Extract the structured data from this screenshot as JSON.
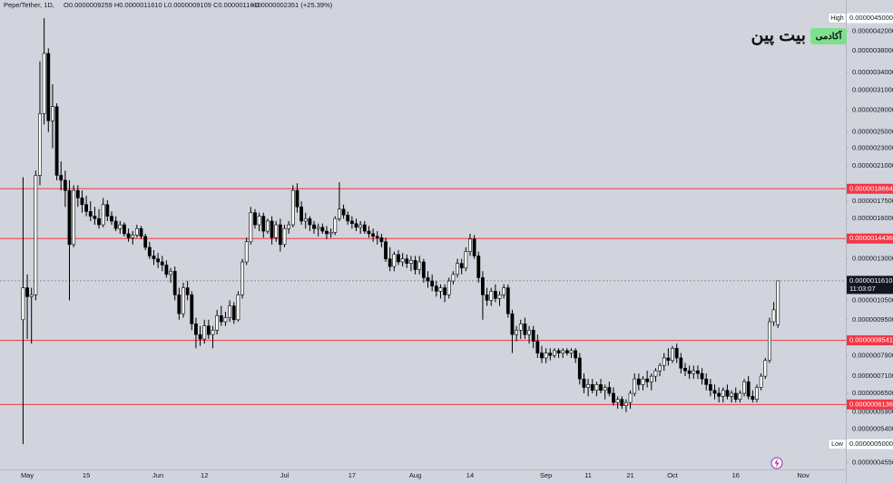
{
  "chart_data": {
    "type": "candlestick",
    "header": {
      "symbol": "Pepe/Tether, 1D,",
      "ohlc": "O0.0000009259 H0.0000011610 L0.0000009109 C0.0000011610",
      "change": "+0.0000002351 (+25.39%)"
    },
    "watermark": {
      "brand": "بیت پین",
      "badge": "آکادمی"
    },
    "log_scale": true,
    "grid": false,
    "up_color": "#ffffff",
    "down_color": "#000000",
    "level_color": "#f23645",
    "ylim": [
      4.39e-07,
      4.94e-06
    ],
    "yticks": [
      {
        "value": 4.2e-06,
        "label": "0.0000042000"
      },
      {
        "value": 3.8e-06,
        "label": "0.0000038000"
      },
      {
        "value": 3.4e-06,
        "label": "0.0000034000"
      },
      {
        "value": 3.1e-06,
        "label": "0.0000031000"
      },
      {
        "value": 2.8e-06,
        "label": "0.0000028000"
      },
      {
        "value": 2.5e-06,
        "label": "0.0000025000"
      },
      {
        "value": 2.3e-06,
        "label": "0.0000023000"
      },
      {
        "value": 2.1e-06,
        "label": "0.0000021000"
      },
      {
        "value": 1.75e-06,
        "label": "0.0000017500"
      },
      {
        "value": 1.6e-06,
        "label": "0.0000016000"
      },
      {
        "value": 1.3e-06,
        "label": "0.0000013000"
      },
      {
        "value": 1.05e-06,
        "label": "0.0000010500"
      },
      {
        "value": 9.5e-07,
        "label": "0.0000009500"
      },
      {
        "value": 7.9e-07,
        "label": "0.0000007900"
      },
      {
        "value": 7.1e-07,
        "label": "0.0000007100"
      },
      {
        "value": 6.5e-07,
        "label": "0.0000006500"
      },
      {
        "value": 5.9e-07,
        "label": "0.0000005900"
      },
      {
        "value": 5.4e-07,
        "label": "0.0000005400"
      },
      {
        "value": 4.55e-07,
        "label": "0.0000004550"
      }
    ],
    "extremes": [
      {
        "name": "High",
        "value": 4.5e-06,
        "label": "0.0000045000"
      },
      {
        "name": "Low",
        "value": 5e-07,
        "label": "0.0000005000"
      }
    ],
    "levels": [
      {
        "value": 1.8664e-06,
        "label": "0.0000018664"
      },
      {
        "value": 1.4436e-06,
        "label": "0.0000014436"
      },
      {
        "value": 8.541e-07,
        "label": "0.0000008541"
      },
      {
        "value": 6.136e-07,
        "label": "0.0000006136"
      }
    ],
    "last_price": {
      "value": 1.161e-06,
      "label": "0.0000011610",
      "countdown": "11:03:07"
    },
    "categories": [
      null,
      "May",
      null,
      null,
      null,
      null,
      null,
      null,
      null,
      null,
      null,
      null,
      null,
      null,
      null,
      "15",
      null,
      null,
      null,
      null,
      null,
      null,
      null,
      null,
      null,
      null,
      null,
      null,
      null,
      null,
      null,
      null,
      "Jun",
      null,
      null,
      null,
      null,
      null,
      null,
      null,
      null,
      null,
      null,
      "12",
      null,
      null,
      null,
      null,
      null,
      null,
      null,
      null,
      null,
      null,
      null,
      null,
      null,
      null,
      null,
      null,
      null,
      null,
      "Jul",
      null,
      null,
      null,
      null,
      null,
      null,
      null,
      null,
      null,
      null,
      null,
      null,
      null,
      null,
      null,
      "17",
      null,
      null,
      null,
      null,
      null,
      null,
      null,
      null,
      null,
      null,
      null,
      null,
      null,
      null,
      "Aug",
      null,
      null,
      null,
      null,
      null,
      null,
      null,
      null,
      null,
      null,
      null,
      null,
      "14",
      null,
      null,
      null,
      null,
      null,
      null,
      null,
      null,
      null,
      null,
      null,
      null,
      null,
      null,
      null,
      null,
      null,
      "Sep",
      null,
      null,
      null,
      null,
      null,
      null,
      null,
      null,
      null,
      "11",
      null,
      null,
      null,
      null,
      null,
      null,
      null,
      null,
      null,
      "21",
      null,
      null,
      null,
      null,
      null,
      null,
      null,
      null,
      null,
      "Oct",
      null,
      null,
      null,
      null,
      null,
      null,
      null,
      null,
      null,
      null,
      null,
      null,
      null,
      null,
      "16",
      null,
      null,
      null,
      null,
      null,
      null,
      null,
      null,
      null,
      null,
      null,
      null,
      null,
      null,
      null,
      "Nov"
    ],
    "open": [
      9.5e-07,
      1.12e-06,
      1.07e-06,
      1.08e-06,
      2e-06,
      2.75e-06,
      3.75e-06,
      2.65e-06,
      2.85e-06,
      2e-06,
      1.95e-06,
      1.85e-06,
      1.4e-06,
      1.85e-06,
      1.78e-06,
      1.72e-06,
      1.66e-06,
      1.62e-06,
      1.6e-06,
      1.55e-06,
      1.72e-06,
      1.62e-06,
      1.58e-06,
      1.52e-06,
      1.55e-06,
      1.48e-06,
      1.45e-06,
      1.47e-06,
      1.52e-06,
      1.46e-06,
      1.38e-06,
      1.32e-06,
      1.3e-06,
      1.28e-06,
      1.26e-06,
      1.2e-06,
      1.22e-06,
      1.08e-06,
      9.8e-07,
      1.12e-06,
      1.08e-06,
      9.3e-07,
      8.8e-07,
      8.6e-07,
      9.2e-07,
      8.8e-07,
      9e-07,
      9.7e-07,
      9.4e-07,
      9.6e-07,
      1.02e-06,
      9.5e-07,
      1.08e-06,
      1.28e-06,
      1.42e-06,
      1.65e-06,
      1.55e-06,
      1.62e-06,
      1.5e-06,
      1.58e-06,
      1.45e-06,
      1.55e-06,
      1.4e-06,
      1.52e-06,
      1.55e-06,
      1.85e-06,
      1.7e-06,
      1.58e-06,
      1.6e-06,
      1.55e-06,
      1.52e-06,
      1.53e-06,
      1.5e-06,
      1.48e-06,
      1.49e-06,
      1.6e-06,
      1.68e-06,
      1.63e-06,
      1.58e-06,
      1.56e-06,
      1.53e-06,
      1.55e-06,
      1.5e-06,
      1.48e-06,
      1.46e-06,
      1.45e-06,
      1.42e-06,
      1.3e-06,
      1.25e-06,
      1.33e-06,
      1.28e-06,
      1.3e-06,
      1.27e-06,
      1.29e-06,
      1.23e-06,
      1.28e-06,
      1.18e-06,
      1.16e-06,
      1.13e-06,
      1.1e-06,
      1.12e-06,
      1.08e-06,
      1.16e-06,
      1.2e-06,
      1.27e-06,
      1.24e-06,
      1.35e-06,
      1.44e-06,
      1.32e-06,
      1.18e-06,
      1.08e-06,
      1.05e-06,
      1.1e-06,
      1.06e-06,
      1.08e-06,
      1.12e-06,
      9.8e-07,
      8.8e-07,
      9e-07,
      9.3e-07,
      8.8e-07,
      9e-07,
      8.5e-07,
      8e-07,
      7.8e-07,
      8e-07,
      7.9e-07,
      8.1e-07,
      8e-07,
      8.1e-07,
      8e-07,
      8.1e-07,
      7.8e-07,
      7e-07,
      6.7e-07,
      6.8e-07,
      6.6e-07,
      6.8e-07,
      6.6e-07,
      6.7e-07,
      6.5e-07,
      6.2e-07,
      6.3e-07,
      6.1e-07,
      6.2e-07,
      6.5e-07,
      7e-07,
      6.8e-07,
      7e-07,
      6.9e-07,
      7.1e-07,
      7.3e-07,
      7.5e-07,
      7.8e-07,
      7.7e-07,
      8.2e-07,
      7.8e-07,
      7.4e-07,
      7.3e-07,
      7.2e-07,
      7.3e-07,
      7.2e-07,
      7e-07,
      6.8e-07,
      6.6e-07,
      6.5e-07,
      6.4e-07,
      6.6e-07,
      6.4e-07,
      6.5e-07,
      6.3e-07,
      6.5e-07,
      6.9e-07,
      6.4e-07,
      6.3e-07,
      6.7e-07,
      7.1e-07,
      7.7e-07,
      9.4e-07,
      9.259e-07,
      null,
      null,
      null,
      null,
      null,
      null
    ],
    "high": [
      1.98e-06,
      1.2e-06,
      1.12e-06,
      2.05e-06,
      3.6e-06,
      4.5e-06,
      3.85e-06,
      3.2e-06,
      2.9e-06,
      2.15e-06,
      2.05e-06,
      1.95e-06,
      1.9e-06,
      1.9e-06,
      1.85e-06,
      1.8e-06,
      1.75e-06,
      1.7e-06,
      1.68e-06,
      1.78e-06,
      1.76e-06,
      1.66e-06,
      1.62e-06,
      1.58e-06,
      1.57e-06,
      1.52e-06,
      1.5e-06,
      1.55e-06,
      1.54e-06,
      1.48e-06,
      1.42e-06,
      1.36e-06,
      1.34e-06,
      1.32e-06,
      1.29e-06,
      1.24e-06,
      1.25e-06,
      1.12e-06,
      1.15e-06,
      1.16e-06,
      1.1e-06,
      9.6e-07,
      9.2e-07,
      9.5e-07,
      9.5e-07,
      9.2e-07,
      1e-06,
      1.02e-06,
      9.9e-07,
      1.05e-06,
      1.04e-06,
      1.1e-06,
      1.3e-06,
      1.45e-06,
      1.7e-06,
      1.68e-06,
      1.65e-06,
      1.65e-06,
      1.6e-06,
      1.62e-06,
      1.58e-06,
      1.6e-06,
      1.55e-06,
      1.58e-06,
      1.9e-06,
      1.92e-06,
      1.75e-06,
      1.65e-06,
      1.62e-06,
      1.58e-06,
      1.56e-06,
      1.56e-06,
      1.54e-06,
      1.52e-06,
      1.62e-06,
      1.93e-06,
      1.72e-06,
      1.66e-06,
      1.62e-06,
      1.6e-06,
      1.58e-06,
      1.58e-06,
      1.54e-06,
      1.52e-06,
      1.5e-06,
      1.48e-06,
      1.45e-06,
      1.38e-06,
      1.35e-06,
      1.36e-06,
      1.34e-06,
      1.33e-06,
      1.32e-06,
      1.32e-06,
      1.32e-06,
      1.3e-06,
      1.22e-06,
      1.2e-06,
      1.16e-06,
      1.14e-06,
      1.14e-06,
      1.18e-06,
      1.22e-06,
      1.3e-06,
      1.3e-06,
      1.38e-06,
      1.48e-06,
      1.47e-06,
      1.35e-06,
      1.22e-06,
      1.12e-06,
      1.12e-06,
      1.14e-06,
      1.1e-06,
      1.14e-06,
      1.14e-06,
      1e-06,
      9.2e-07,
      9.5e-07,
      9.6e-07,
      9.2e-07,
      9.2e-07,
      8.8e-07,
      8.3e-07,
      8.2e-07,
      8.2e-07,
      8.2e-07,
      8.2e-07,
      8.2e-07,
      8.2e-07,
      8.2e-07,
      8.2e-07,
      8e-07,
      7.2e-07,
      7e-07,
      7e-07,
      6.9e-07,
      7e-07,
      6.8e-07,
      6.9e-07,
      6.7e-07,
      6.4e-07,
      6.4e-07,
      6.3e-07,
      6.6e-07,
      7.2e-07,
      7.2e-07,
      7.1e-07,
      7.3e-07,
      7.2e-07,
      7.4e-07,
      7.6e-07,
      8e-07,
      8.2e-07,
      8.3e-07,
      8.4e-07,
      8e-07,
      7.6e-07,
      7.5e-07,
      7.5e-07,
      7.5e-07,
      7.4e-07,
      7.2e-07,
      7e-07,
      6.8e-07,
      6.7e-07,
      6.7e-07,
      6.8e-07,
      6.6e-07,
      6.7e-07,
      6.6e-07,
      7e-07,
      7.1e-07,
      6.6e-07,
      6.8e-07,
      7.2e-07,
      7.8e-07,
      9.6e-07,
      1.04e-06,
      1.161e-06,
      null,
      null,
      null,
      null,
      null,
      null
    ],
    "low": [
      5e-07,
      8.6e-07,
      8.4e-07,
      1.05e-06,
      1.9e-06,
      2.6e-06,
      2.5e-06,
      2.3e-06,
      1.95e-06,
      1.85e-06,
      1.7e-06,
      1.05e-06,
      1.38e-06,
      1.7e-06,
      1.65e-06,
      1.62e-06,
      1.58e-06,
      1.55e-06,
      1.52e-06,
      1.53e-06,
      1.58e-06,
      1.55e-06,
      1.5e-06,
      1.48e-06,
      1.46e-06,
      1.42e-06,
      1.4e-06,
      1.45e-06,
      1.44e-06,
      1.36e-06,
      1.3e-06,
      1.26e-06,
      1.24e-06,
      1.22e-06,
      1.18e-06,
      1.15e-06,
      1.05e-06,
      9.5e-07,
      9.6e-07,
      1.05e-06,
      9e-07,
      8.2e-07,
      8.3e-07,
      8.4e-07,
      8.6e-07,
      8.2e-07,
      8.8e-07,
      9.2e-07,
      9.2e-07,
      9.4e-07,
      9.3e-07,
      9.4e-07,
      1.06e-06,
      1.26e-06,
      1.4e-06,
      1.52e-06,
      1.5e-06,
      1.45e-06,
      1.48e-06,
      1.4e-06,
      1.42e-06,
      1.35e-06,
      1.38e-06,
      1.48e-06,
      1.53e-06,
      1.65e-06,
      1.55e-06,
      1.52e-06,
      1.5e-06,
      1.48e-06,
      1.46e-06,
      1.48e-06,
      1.44e-06,
      1.45e-06,
      1.47e-06,
      1.58e-06,
      1.6e-06,
      1.55e-06,
      1.52e-06,
      1.5e-06,
      1.48e-06,
      1.48e-06,
      1.45e-06,
      1.42e-06,
      1.4e-06,
      1.38e-06,
      1.28e-06,
      1.22e-06,
      1.22e-06,
      1.26e-06,
      1.25e-06,
      1.24e-06,
      1.22e-06,
      1.2e-06,
      1.2e-06,
      1.15e-06,
      1.12e-06,
      1.1e-06,
      1.07e-06,
      1.06e-06,
      1.04e-06,
      1.06e-06,
      1.14e-06,
      1.18e-06,
      1.2e-06,
      1.22e-06,
      1.32e-06,
      1.3e-06,
      1.15e-06,
      9.5e-07,
      1.02e-06,
      1.02e-06,
      1.04e-06,
      1.02e-06,
      1.06e-06,
      9.6e-07,
      8e-07,
      8.5e-07,
      8.6e-07,
      8.6e-07,
      8.4e-07,
      8.2e-07,
      7.8e-07,
      7.6e-07,
      7.6e-07,
      7.7e-07,
      7.8e-07,
      7.8e-07,
      7.8e-07,
      7.9e-07,
      7.8e-07,
      7.6e-07,
      6.8e-07,
      6.5e-07,
      6.4e-07,
      6.5e-07,
      6.4e-07,
      6.5e-07,
      6.3e-07,
      6.4e-07,
      6.1e-07,
      6e-07,
      6e-07,
      5.9e-07,
      6e-07,
      6.4e-07,
      6.6e-07,
      6.6e-07,
      6.7e-07,
      6.6e-07,
      6.9e-07,
      7.1e-07,
      7.3e-07,
      7.5e-07,
      7.6e-07,
      7.6e-07,
      7.2e-07,
      7.1e-07,
      7e-07,
      7e-07,
      7e-07,
      6.8e-07,
      6.6e-07,
      6.4e-07,
      6.3e-07,
      6.2e-07,
      6.2e-07,
      6.3e-07,
      6.2e-07,
      6.2e-07,
      6.2e-07,
      6.4e-07,
      6.3e-07,
      6.2e-07,
      6.2e-07,
      6.6e-07,
      7e-07,
      7.6e-07,
      9.2e-07,
      9.109e-07,
      null,
      null,
      null,
      null,
      null,
      null
    ],
    "close": [
      1.12e-06,
      1.07e-06,
      1.08e-06,
      2e-06,
      2.75e-06,
      3.75e-06,
      2.65e-06,
      2.85e-06,
      2e-06,
      1.95e-06,
      1.85e-06,
      1.4e-06,
      1.85e-06,
      1.78e-06,
      1.72e-06,
      1.66e-06,
      1.62e-06,
      1.6e-06,
      1.55e-06,
      1.72e-06,
      1.62e-06,
      1.58e-06,
      1.52e-06,
      1.55e-06,
      1.48e-06,
      1.45e-06,
      1.47e-06,
      1.52e-06,
      1.46e-06,
      1.38e-06,
      1.32e-06,
      1.3e-06,
      1.28e-06,
      1.26e-06,
      1.2e-06,
      1.22e-06,
      1.08e-06,
      9.8e-07,
      1.12e-06,
      1.08e-06,
      9.3e-07,
      8.8e-07,
      8.6e-07,
      9.2e-07,
      8.8e-07,
      9e-07,
      9.7e-07,
      9.4e-07,
      9.6e-07,
      1.02e-06,
      9.5e-07,
      1.08e-06,
      1.28e-06,
      1.42e-06,
      1.65e-06,
      1.55e-06,
      1.62e-06,
      1.5e-06,
      1.58e-06,
      1.45e-06,
      1.55e-06,
      1.4e-06,
      1.52e-06,
      1.55e-06,
      1.85e-06,
      1.7e-06,
      1.58e-06,
      1.6e-06,
      1.55e-06,
      1.52e-06,
      1.53e-06,
      1.5e-06,
      1.48e-06,
      1.49e-06,
      1.6e-06,
      1.68e-06,
      1.63e-06,
      1.58e-06,
      1.56e-06,
      1.53e-06,
      1.55e-06,
      1.5e-06,
      1.48e-06,
      1.46e-06,
      1.45e-06,
      1.42e-06,
      1.3e-06,
      1.25e-06,
      1.33e-06,
      1.28e-06,
      1.3e-06,
      1.27e-06,
      1.29e-06,
      1.23e-06,
      1.28e-06,
      1.18e-06,
      1.16e-06,
      1.13e-06,
      1.1e-06,
      1.12e-06,
      1.08e-06,
      1.16e-06,
      1.2e-06,
      1.27e-06,
      1.24e-06,
      1.35e-06,
      1.44e-06,
      1.32e-06,
      1.18e-06,
      1.08e-06,
      1.05e-06,
      1.1e-06,
      1.06e-06,
      1.08e-06,
      1.12e-06,
      9.8e-07,
      8.8e-07,
      9e-07,
      9.3e-07,
      8.8e-07,
      9e-07,
      8.5e-07,
      8e-07,
      7.8e-07,
      8e-07,
      7.9e-07,
      8.1e-07,
      8e-07,
      8.1e-07,
      8e-07,
      8.1e-07,
      7.8e-07,
      7e-07,
      6.7e-07,
      6.8e-07,
      6.6e-07,
      6.8e-07,
      6.6e-07,
      6.7e-07,
      6.5e-07,
      6.2e-07,
      6.3e-07,
      6.1e-07,
      6.2e-07,
      6.5e-07,
      7e-07,
      6.8e-07,
      7e-07,
      6.9e-07,
      7.1e-07,
      7.3e-07,
      7.5e-07,
      7.8e-07,
      7.7e-07,
      8.2e-07,
      7.8e-07,
      7.4e-07,
      7.3e-07,
      7.2e-07,
      7.3e-07,
      7.2e-07,
      7e-07,
      6.8e-07,
      6.6e-07,
      6.5e-07,
      6.4e-07,
      6.6e-07,
      6.4e-07,
      6.5e-07,
      6.3e-07,
      6.5e-07,
      6.9e-07,
      6.4e-07,
      6.3e-07,
      6.7e-07,
      7.1e-07,
      7.7e-07,
      9.4e-07,
      1e-06,
      1.161e-06,
      null,
      null,
      null,
      null,
      null,
      null
    ]
  }
}
